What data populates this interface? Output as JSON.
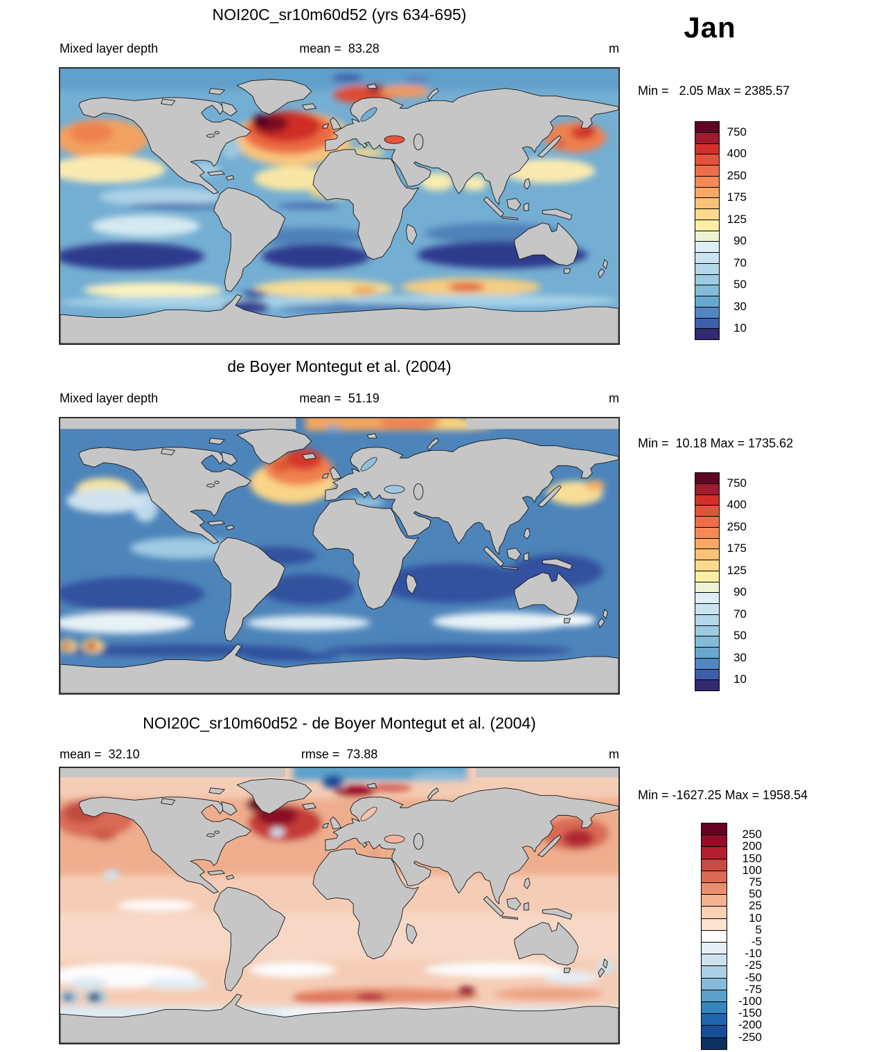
{
  "month": "Jan",
  "panels": [
    {
      "title": "NOI20C_sr10m60d52 (yrs 634-695)",
      "left_label": "Mixed layer depth",
      "center_label": "mean =  83.28",
      "right_label": "m",
      "minmax": "Min =   2.05 Max = 2385.57",
      "colorbar": {
        "colors": [
          "#5e0623",
          "#a01b2e",
          "#d43029",
          "#e3523a",
          "#f06d4a",
          "#f58a57",
          "#f9a763",
          "#fbc277",
          "#fdd98b",
          "#fdeea1",
          "#eef4d2",
          "#ddeef7",
          "#c8e4f0",
          "#b2d8ea",
          "#9ccbe2",
          "#82bcd9",
          "#68a8cf",
          "#5186c0",
          "#3d5fa9",
          "#312a70"
        ],
        "tick_labels": [
          "750",
          "400",
          "250",
          "175",
          "125",
          "90",
          "70",
          "50",
          "30",
          "10"
        ],
        "tick_boundaries": [
          1,
          3,
          5,
          7,
          9,
          11,
          13,
          15,
          17,
          19
        ]
      }
    },
    {
      "title": "de Boyer Montegut et al. (2004)",
      "left_label": "Mixed layer depth",
      "center_label": "mean =  51.19",
      "right_label": "m",
      "minmax": "Min =  10.18 Max = 1735.62",
      "colorbar": {
        "colors": [
          "#5e0623",
          "#a01b2e",
          "#d43029",
          "#e3523a",
          "#f06d4a",
          "#f58a57",
          "#f9a763",
          "#fbc277",
          "#fdd98b",
          "#fdeea1",
          "#eef4d2",
          "#ddeef7",
          "#c8e4f0",
          "#b2d8ea",
          "#9ccbe2",
          "#82bcd9",
          "#68a8cf",
          "#5186c0",
          "#3d5fa9",
          "#312a70"
        ],
        "tick_labels": [
          "750",
          "400",
          "250",
          "175",
          "125",
          "90",
          "70",
          "50",
          "30",
          "10"
        ],
        "tick_boundaries": [
          1,
          3,
          5,
          7,
          9,
          11,
          13,
          15,
          17,
          19
        ]
      }
    },
    {
      "title": "NOI20C_sr10m60d52 - de Boyer Montegut et al. (2004)",
      "left_label": "mean =  32.10",
      "center_label": "rmse =  73.88",
      "right_label": "m",
      "minmax": "Min = -1627.25 Max = 1958.54",
      "colorbar": {
        "colors": [
          "#650223",
          "#930c28",
          "#b51f2f",
          "#c84a41",
          "#d96a54",
          "#e98e6d",
          "#f5b292",
          "#fbd0b4",
          "#fce3d2",
          "#ffffff",
          "#e4eff6",
          "#cde1ed",
          "#abcfe4",
          "#85bad9",
          "#5ba1cc",
          "#3585be",
          "#2066ac",
          "#174e97",
          "#0e3161"
        ],
        "tick_labels": [
          "250",
          "200",
          "150",
          "100",
          "75",
          "50",
          "25",
          "10",
          "5",
          "-5",
          "-10",
          "-25",
          "-50",
          "-75",
          "-100",
          "-150",
          "-200",
          "-250"
        ],
        "tick_boundaries": [
          1,
          2,
          3,
          4,
          5,
          6,
          7,
          8,
          9,
          10,
          11,
          12,
          13,
          14,
          15,
          16,
          17,
          18
        ]
      }
    }
  ],
  "chart_data": [
    {
      "type": "heatmap",
      "title": "NOI20C_sr10m60d52 (yrs 634-695)",
      "variable": "Mixed layer depth",
      "units": "m",
      "month": "Jan",
      "mean": 83.28,
      "min": 2.05,
      "max": 2385.57,
      "projection": "global equirectangular map, lon -180..180, lat 90..-90",
      "colorbar_tick_values": [
        750,
        400,
        250,
        175,
        125,
        90,
        70,
        50,
        30,
        10
      ],
      "legend_position": "right",
      "notes": "Deep mixed layer (red/maroon >400 m) in subpolar North Atlantic and Norwegian/Barents Seas; orange 150-400 m in North Pacific; pale yellow ~100-150 m in northern subtropics and Southern Ocean 45-60S; dark blue <30 m in southern subtropical gyres and near Antarctica; gray continents"
    },
    {
      "type": "heatmap",
      "title": "de Boyer Montegut et al. (2004)",
      "variable": "Mixed layer depth",
      "units": "m",
      "month": "Jan",
      "mean": 51.19,
      "min": 10.18,
      "max": 1735.62,
      "projection": "global equirectangular map, lon -180..180, lat 90..-90",
      "colorbar_tick_values": [
        750,
        400,
        250,
        175,
        125,
        90,
        70,
        50,
        30,
        10
      ],
      "legend_position": "right",
      "notes": "Observations: mostly blue (<70 m); orange/red North Atlantic with maroon spot in Greenland Sea; yellow NE and NW Pacific; pale band 35-50S; two isolated red spots near 175W/160W at ~55S; Arctic band of orange data along top, gray no-data corners"
    },
    {
      "type": "heatmap",
      "title": "NOI20C_sr10m60d52 - de Boyer Montegut et al. (2004)",
      "variable": "Mixed layer depth difference",
      "units": "m",
      "month": "Jan",
      "mean": 32.1,
      "rmse": 73.88,
      "min": -1627.25,
      "max": 1958.54,
      "projection": "global equirectangular map, lon -180..180, lat 90..-90",
      "colorbar_tick_values": [
        250,
        200,
        150,
        100,
        75,
        50,
        25,
        10,
        5,
        -5,
        -10,
        -25,
        -50,
        -75,
        -100,
        -150,
        -200,
        -250
      ],
      "legend_position": "right",
      "notes": "Model minus observations: positive (salmon/red) over most oceans, dark red >150 m in North Atlantic, NW and NE Pacific and Barents streak; dark blue negative patch in central Arctic and two navy spots in far SE Pacific ~55S; white band 35-55S"
    }
  ]
}
